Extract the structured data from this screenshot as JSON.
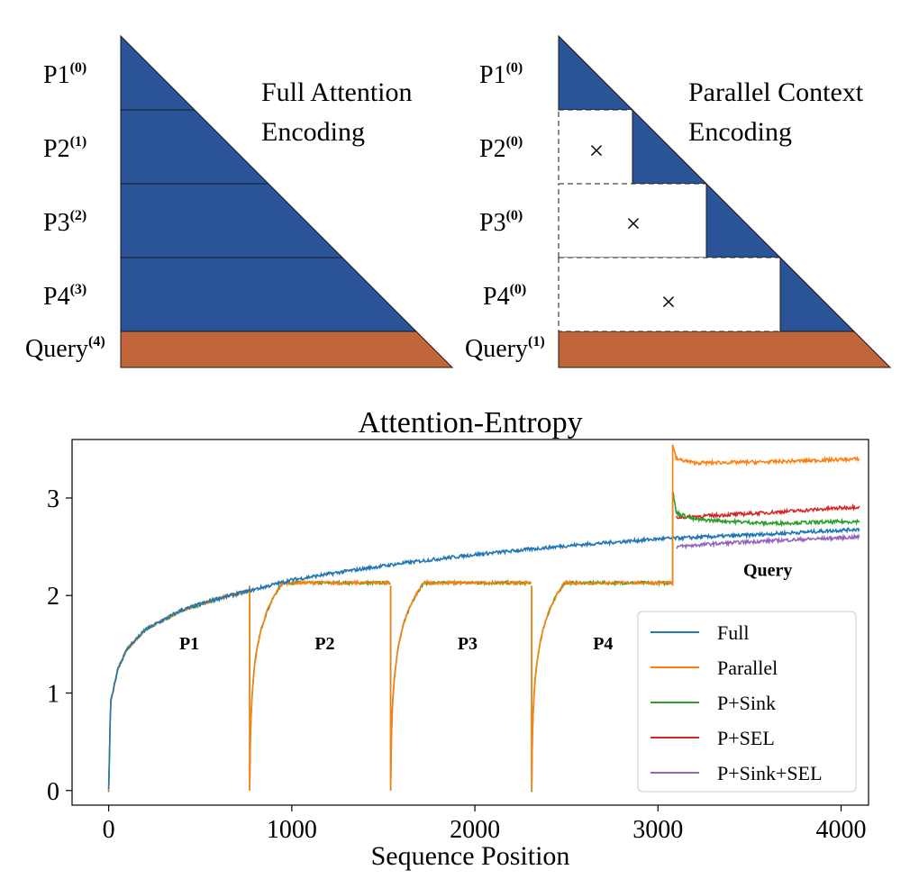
{
  "diagrams": {
    "left": {
      "title_line1": "Full Attention",
      "title_line2": "Encoding",
      "rows": [
        {
          "label": "P1",
          "sup": "(0)"
        },
        {
          "label": "P2",
          "sup": "(1)"
        },
        {
          "label": "P3",
          "sup": "(2)"
        },
        {
          "label": "P4",
          "sup": "(3)"
        },
        {
          "label": "Query",
          "sup": "(4)"
        }
      ]
    },
    "right": {
      "title_line1": "Parallel Context",
      "title_line2": "Encoding",
      "rows": [
        {
          "label": "P1",
          "sup": "(0)"
        },
        {
          "label": "P2",
          "sup": "(0)"
        },
        {
          "label": "P3",
          "sup": "(0)"
        },
        {
          "label": "P4",
          "sup": "(0)"
        },
        {
          "label": "Query",
          "sup": "(1)"
        }
      ],
      "mask_symbol": "×"
    },
    "colors": {
      "context": "#2b5498",
      "query": "#c1663a"
    }
  },
  "chart_data": {
    "type": "line",
    "title": "Attention-Entropy",
    "xlabel": "Sequence Position",
    "ylabel": "",
    "xlim": [
      -200,
      4150
    ],
    "ylim": [
      -0.15,
      3.6
    ],
    "xticks": [
      0,
      1000,
      2000,
      3000,
      4000
    ],
    "yticks": [
      0,
      1,
      2,
      3
    ],
    "grid": false,
    "legend_position": "lower-right",
    "segment_labels": [
      {
        "text": "P1",
        "x": 440,
        "y": 1.45
      },
      {
        "text": "P2",
        "x": 1180,
        "y": 1.45
      },
      {
        "text": "P3",
        "x": 1960,
        "y": 1.45
      },
      {
        "text": "P4",
        "x": 2700,
        "y": 1.45
      },
      {
        "text": "Query",
        "x": 3600,
        "y": 2.2
      }
    ],
    "segment_boundaries": [
      0,
      770,
      1540,
      2310,
      3080,
      4100
    ],
    "series": [
      {
        "name": "Full",
        "color": "#1f77b4",
        "points": [
          [
            0,
            0
          ],
          [
            10,
            0.9
          ],
          [
            50,
            1.25
          ],
          [
            100,
            1.45
          ],
          [
            200,
            1.65
          ],
          [
            400,
            1.85
          ],
          [
            600,
            1.97
          ],
          [
            770,
            2.05
          ],
          [
            1000,
            2.16
          ],
          [
            1300,
            2.25
          ],
          [
            1600,
            2.33
          ],
          [
            2000,
            2.42
          ],
          [
            2500,
            2.51
          ],
          [
            3000,
            2.58
          ],
          [
            3500,
            2.62
          ],
          [
            4100,
            2.68
          ]
        ]
      },
      {
        "name": "Parallel",
        "color": "#ff7f0e",
        "points": [
          [
            3080,
            3.55
          ],
          [
            3100,
            3.4
          ],
          [
            3200,
            3.36
          ],
          [
            3600,
            3.37
          ],
          [
            4100,
            3.4
          ]
        ]
      },
      {
        "name": "P+Sink",
        "color": "#2ca02c",
        "points": [
          [
            3080,
            3.08
          ],
          [
            3100,
            2.85
          ],
          [
            3200,
            2.78
          ],
          [
            3600,
            2.74
          ],
          [
            4100,
            2.76
          ]
        ]
      },
      {
        "name": "P+SEL",
        "color": "#d62728",
        "points": [
          [
            3100,
            2.8
          ],
          [
            3300,
            2.82
          ],
          [
            3600,
            2.85
          ],
          [
            4100,
            2.91
          ]
        ]
      },
      {
        "name": "P+Sink+SEL",
        "color": "#9467bd",
        "points": [
          [
            3100,
            2.5
          ],
          [
            3300,
            2.53
          ],
          [
            3600,
            2.56
          ],
          [
            4100,
            2.6
          ]
        ]
      }
    ]
  }
}
